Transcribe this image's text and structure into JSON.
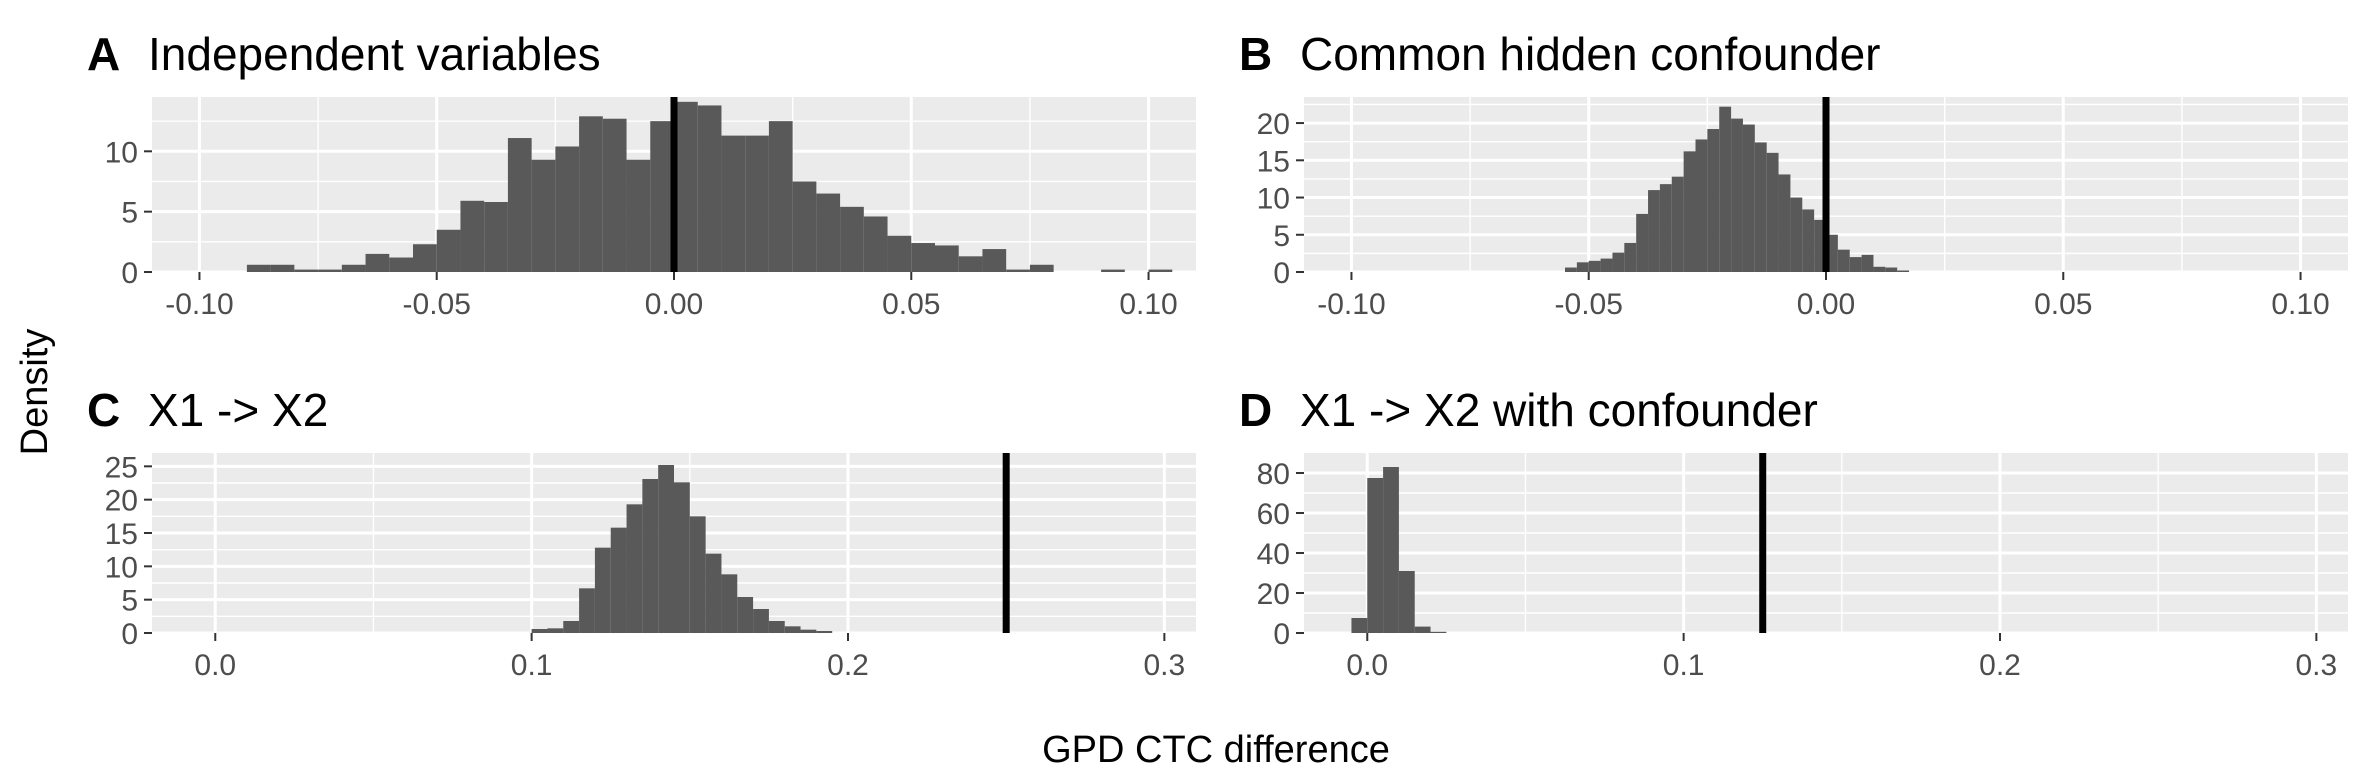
{
  "figure": {
    "ylabel": "Density",
    "xlabel": "GPD CTC difference"
  },
  "colors": {
    "panel_bg": "#ebebeb",
    "grid": "#ffffff",
    "bar": "#595959",
    "vline": "#000000",
    "tick_text": "#4d4d4d",
    "title_text": "#000000"
  },
  "chart_data": [
    {
      "type": "bar",
      "tag": "A",
      "title": "Independent variables",
      "xlim": [
        -0.11,
        0.11
      ],
      "ylim": [
        0,
        14.5
      ],
      "xticks": [
        -0.1,
        -0.05,
        0.0,
        0.05,
        0.1
      ],
      "xtick_labels": [
        "-0.10",
        "-0.05",
        "0.00",
        "0.05",
        "0.10"
      ],
      "yticks": [
        0,
        5,
        10
      ],
      "ytick_labels": [
        "0",
        "5",
        "10"
      ],
      "vline": 0.0,
      "bin_width": 0.005,
      "bin_start": -0.09,
      "counts": [
        0.6,
        0.6,
        0.2,
        0.2,
        0.6,
        1.5,
        1.2,
        2.3,
        3.5,
        5.9,
        5.8,
        11.1,
        9.3,
        10.4,
        12.9,
        12.7,
        9.3,
        12.5,
        14.1,
        13.8,
        11.3,
        11.3,
        12.5,
        7.5,
        6.5,
        5.4,
        4.6,
        3.0,
        2.4,
        2.2,
        1.3,
        1.9,
        0.2,
        0.6,
        0.0,
        0.0,
        0.2,
        0.0,
        0.2,
        0.0
      ]
    },
    {
      "type": "bar",
      "tag": "B",
      "title": "Common hidden confounder",
      "xlim": [
        -0.11,
        0.11
      ],
      "ylim": [
        0,
        23.5
      ],
      "xticks": [
        -0.1,
        -0.05,
        0.0,
        0.05,
        0.1
      ],
      "xtick_labels": [
        "-0.10",
        "-0.05",
        "0.00",
        "0.05",
        "0.10"
      ],
      "yticks": [
        0,
        5,
        10,
        15,
        20
      ],
      "ytick_labels": [
        "0",
        "5",
        "10",
        "15",
        "20"
      ],
      "vline": 0.0,
      "bin_width": 0.0025,
      "bin_start": -0.055,
      "counts": [
        0.6,
        1.3,
        1.5,
        1.8,
        2.6,
        3.9,
        7.8,
        11.0,
        11.8,
        12.8,
        16.2,
        17.8,
        19.2,
        22.2,
        20.6,
        19.8,
        17.4,
        16.0,
        13.1,
        10.0,
        8.4,
        7.0,
        5.0,
        3.0,
        2.0,
        2.3,
        0.7,
        0.6,
        0.2
      ]
    },
    {
      "type": "bar",
      "tag": "C",
      "title": "X1 -> X2",
      "xlim": [
        -0.02,
        0.31
      ],
      "ylim": [
        0,
        27
      ],
      "xticks": [
        0.0,
        0.1,
        0.2,
        0.3
      ],
      "xtick_labels": [
        "0.0",
        "0.1",
        "0.2",
        "0.3"
      ],
      "yticks": [
        0,
        5,
        10,
        15,
        20,
        25
      ],
      "ytick_labels": [
        "0",
        "5",
        "10",
        "15",
        "20",
        "25"
      ],
      "vline": 0.25,
      "bin_width": 0.005,
      "bin_start": 0.1,
      "counts": [
        0.6,
        0.7,
        1.8,
        6.7,
        12.8,
        15.8,
        19.3,
        23.1,
        25.2,
        22.6,
        17.5,
        11.9,
        8.8,
        5.4,
        3.6,
        1.8,
        1.0,
        0.5,
        0.3
      ]
    },
    {
      "type": "bar",
      "tag": "D",
      "title": "X1 -> X2 with confounder",
      "xlim": [
        -0.02,
        0.31
      ],
      "ylim": [
        0,
        90
      ],
      "xticks": [
        0.0,
        0.1,
        0.2,
        0.3
      ],
      "xtick_labels": [
        "0.0",
        "0.1",
        "0.2",
        "0.3"
      ],
      "yticks": [
        0,
        20,
        40,
        60,
        80
      ],
      "ytick_labels": [
        "0",
        "20",
        "40",
        "60",
        "80"
      ],
      "vline": 0.125,
      "bin_width": 0.005,
      "bin_start": -0.005,
      "counts": [
        7.5,
        77.5,
        83.0,
        31.0,
        3.2,
        0.6
      ]
    }
  ]
}
